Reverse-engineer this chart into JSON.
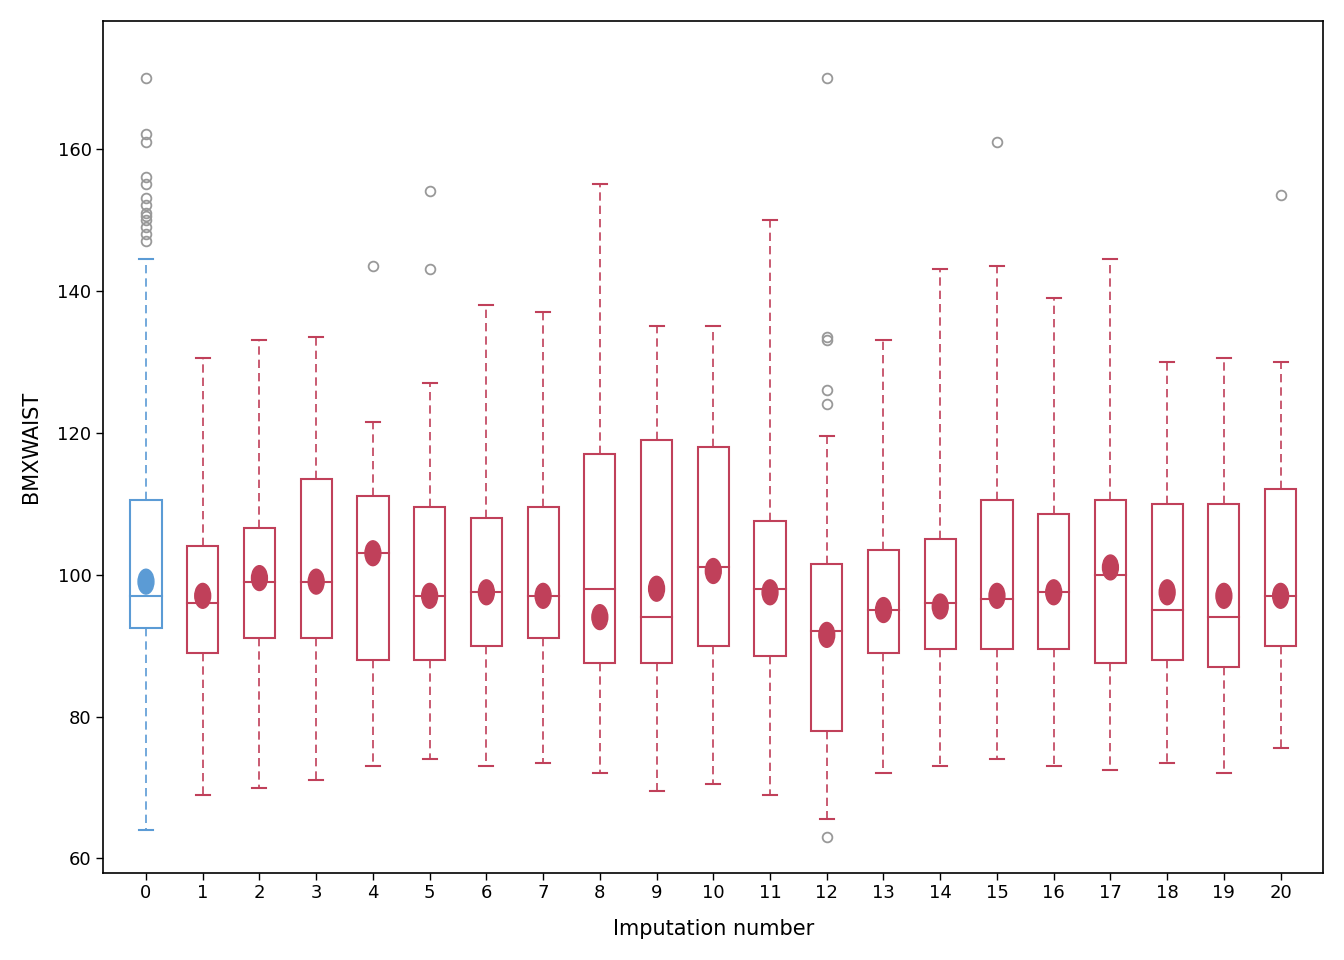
{
  "title": "",
  "xlabel": "Imputation number",
  "ylabel": "BMXWAIST",
  "ylim": [
    58,
    178
  ],
  "yticks": [
    60,
    80,
    100,
    120,
    140,
    160
  ],
  "xticks": [
    0,
    1,
    2,
    3,
    4,
    5,
    6,
    7,
    8,
    9,
    10,
    11,
    12,
    13,
    14,
    15,
    16,
    17,
    18,
    19,
    20
  ],
  "box0_color": "#5B9BD5",
  "box_imp_color": "#C0405A",
  "outlier_color": "#999999",
  "boxplots": [
    {
      "group": 0,
      "q1": 92.5,
      "median": 97.0,
      "q3": 110.5,
      "whisker_low": 64.0,
      "whisker_high": 144.5,
      "mean": 99.0,
      "outliers": [
        147,
        148,
        149,
        150,
        150.5,
        151,
        152,
        153,
        155,
        156,
        161,
        162,
        170
      ],
      "color": "#5B9BD5"
    },
    {
      "group": 1,
      "q1": 89.0,
      "median": 96.0,
      "q3": 104.0,
      "whisker_low": 69.0,
      "whisker_high": 130.5,
      "mean": 97.0,
      "outliers": [],
      "color": "#C0405A"
    },
    {
      "group": 2,
      "q1": 91.0,
      "median": 99.0,
      "q3": 106.5,
      "whisker_low": 70.0,
      "whisker_high": 133.0,
      "mean": 99.5,
      "outliers": [],
      "color": "#C0405A"
    },
    {
      "group": 3,
      "q1": 91.0,
      "median": 99.0,
      "q3": 113.5,
      "whisker_low": 71.0,
      "whisker_high": 133.5,
      "mean": 99.0,
      "outliers": [],
      "color": "#C0405A"
    },
    {
      "group": 4,
      "q1": 88.0,
      "median": 103.0,
      "q3": 111.0,
      "whisker_low": 73.0,
      "whisker_high": 121.5,
      "mean": 103.0,
      "outliers": [
        143.5
      ],
      "color": "#C0405A"
    },
    {
      "group": 5,
      "q1": 88.0,
      "median": 97.0,
      "q3": 109.5,
      "whisker_low": 74.0,
      "whisker_high": 127.0,
      "mean": 97.0,
      "outliers": [
        143.0,
        154.0
      ],
      "color": "#C0405A"
    },
    {
      "group": 6,
      "q1": 90.0,
      "median": 97.5,
      "q3": 108.0,
      "whisker_low": 73.0,
      "whisker_high": 138.0,
      "mean": 97.5,
      "outliers": [],
      "color": "#C0405A"
    },
    {
      "group": 7,
      "q1": 91.0,
      "median": 97.0,
      "q3": 109.5,
      "whisker_low": 73.5,
      "whisker_high": 137.0,
      "mean": 97.0,
      "outliers": [],
      "color": "#C0405A"
    },
    {
      "group": 8,
      "q1": 87.5,
      "median": 98.0,
      "q3": 117.0,
      "whisker_low": 72.0,
      "whisker_high": 155.0,
      "mean": 94.0,
      "outliers": [],
      "color": "#C0405A"
    },
    {
      "group": 9,
      "q1": 87.5,
      "median": 94.0,
      "q3": 119.0,
      "whisker_low": 69.5,
      "whisker_high": 135.0,
      "mean": 98.0,
      "outliers": [],
      "color": "#C0405A"
    },
    {
      "group": 10,
      "q1": 90.0,
      "median": 101.0,
      "q3": 118.0,
      "whisker_low": 70.5,
      "whisker_high": 135.0,
      "mean": 100.5,
      "outliers": [],
      "color": "#C0405A"
    },
    {
      "group": 11,
      "q1": 88.5,
      "median": 98.0,
      "q3": 107.5,
      "whisker_low": 69.0,
      "whisker_high": 150.0,
      "mean": 97.5,
      "outliers": [],
      "color": "#C0405A"
    },
    {
      "group": 12,
      "q1": 78.0,
      "median": 92.0,
      "q3": 101.5,
      "whisker_low": 65.5,
      "whisker_high": 119.5,
      "mean": 91.5,
      "outliers": [
        124.0,
        126.0,
        133.0,
        133.5,
        170.0,
        63.0
      ],
      "color": "#C0405A"
    },
    {
      "group": 13,
      "q1": 89.0,
      "median": 95.0,
      "q3": 103.5,
      "whisker_low": 72.0,
      "whisker_high": 133.0,
      "mean": 95.0,
      "outliers": [],
      "color": "#C0405A"
    },
    {
      "group": 14,
      "q1": 89.5,
      "median": 96.0,
      "q3": 105.0,
      "whisker_low": 73.0,
      "whisker_high": 143.0,
      "mean": 95.5,
      "outliers": [],
      "color": "#C0405A"
    },
    {
      "group": 15,
      "q1": 89.5,
      "median": 96.5,
      "q3": 110.5,
      "whisker_low": 74.0,
      "whisker_high": 143.5,
      "mean": 97.0,
      "outliers": [
        161.0
      ],
      "color": "#C0405A"
    },
    {
      "group": 16,
      "q1": 89.5,
      "median": 97.5,
      "q3": 108.5,
      "whisker_low": 73.0,
      "whisker_high": 139.0,
      "mean": 97.5,
      "outliers": [],
      "color": "#C0405A"
    },
    {
      "group": 17,
      "q1": 87.5,
      "median": 100.0,
      "q3": 110.5,
      "whisker_low": 72.5,
      "whisker_high": 144.5,
      "mean": 101.0,
      "outliers": [],
      "color": "#C0405A"
    },
    {
      "group": 18,
      "q1": 88.0,
      "median": 95.0,
      "q3": 110.0,
      "whisker_low": 73.5,
      "whisker_high": 130.0,
      "mean": 97.5,
      "outliers": [],
      "color": "#C0405A"
    },
    {
      "group": 19,
      "q1": 87.0,
      "median": 94.0,
      "q3": 110.0,
      "whisker_low": 72.0,
      "whisker_high": 130.5,
      "mean": 97.0,
      "outliers": [],
      "color": "#C0405A"
    },
    {
      "group": 20,
      "q1": 90.0,
      "median": 97.0,
      "q3": 112.0,
      "whisker_low": 75.5,
      "whisker_high": 130.0,
      "mean": 97.0,
      "outliers": [
        153.5
      ],
      "color": "#C0405A"
    }
  ]
}
